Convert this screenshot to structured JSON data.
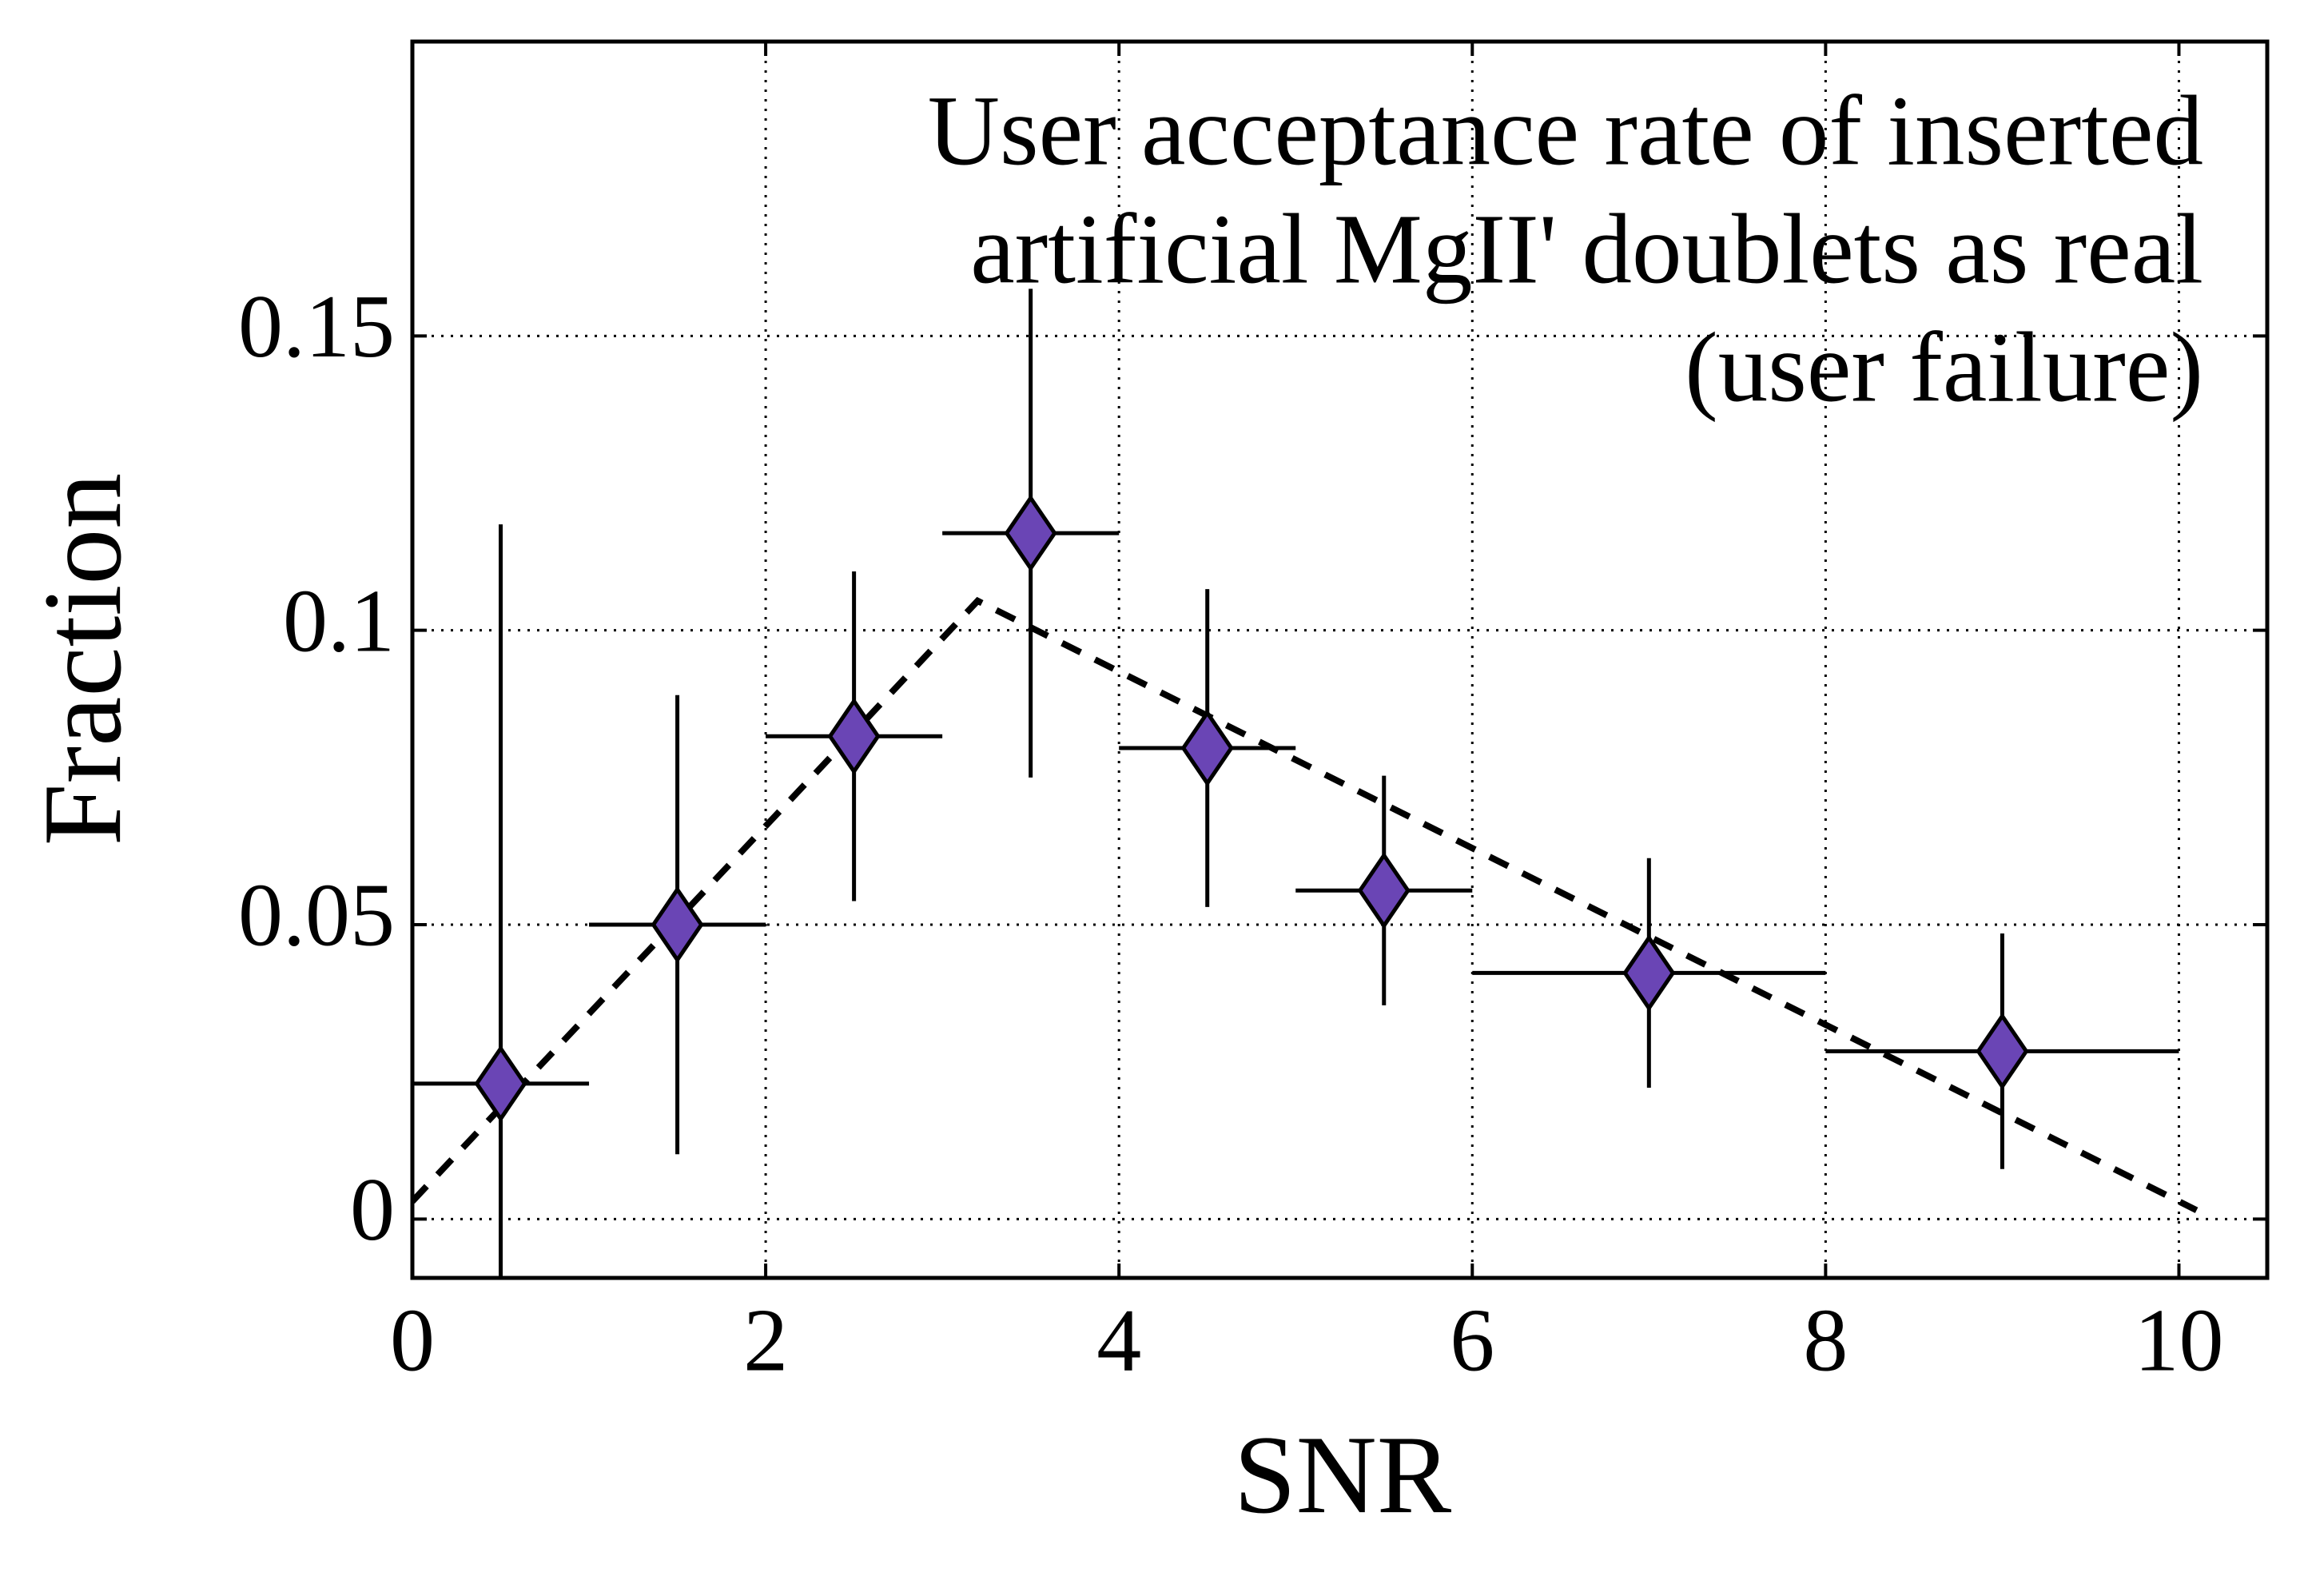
{
  "chart_data": {
    "type": "scatter",
    "title": [
      "User acceptance rate of inserted",
      "artificial MgII' doublets as real",
      "(user failure)"
    ],
    "xlabel": "SNR",
    "ylabel": "Fraction",
    "xlim": [
      0,
      10.5
    ],
    "ylim": [
      -0.01,
      0.2
    ],
    "xticks": [
      0,
      2,
      4,
      6,
      8,
      10
    ],
    "yticks": [
      0,
      0.05,
      0.1,
      0.15
    ],
    "grid": true,
    "series": [
      {
        "type": "scatter",
        "color": "#6a45b5",
        "marker": "diamond",
        "x": [
          0.5,
          1.5,
          2.5,
          3.5,
          4.5,
          5.5,
          7,
          9
        ],
        "values": [
          0.023,
          0.05,
          0.082,
          0.1165,
          0.08,
          0.0558,
          0.0418,
          0.0285
        ],
        "xerr": [
          0.5,
          0.5,
          0.5,
          0.5,
          0.5,
          0.5,
          1,
          1
        ],
        "yerr": [
          0.095,
          0.039,
          0.028,
          0.0415,
          0.027,
          0.0195,
          0.0195,
          0.02
        ]
      },
      {
        "type": "line",
        "color": "#000000",
        "dashed": true,
        "x": [
          0,
          3.2,
          10.1
        ],
        "values": [
          0.003,
          0.105,
          0.0015
        ]
      }
    ]
  }
}
